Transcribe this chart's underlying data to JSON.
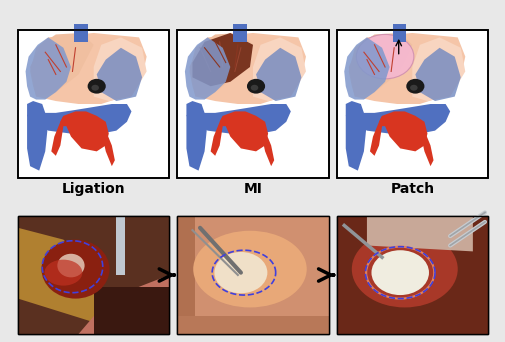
{
  "background_color": "#e8e8e8",
  "figure_bg": "#e8e8e8",
  "labels": [
    "Ligation",
    "MI",
    "Patch"
  ],
  "label_fontsize": 10,
  "label_fontweight": "bold",
  "arrow_color": "black",
  "diagram_border_color": "black",
  "photo_border_color": "black"
}
